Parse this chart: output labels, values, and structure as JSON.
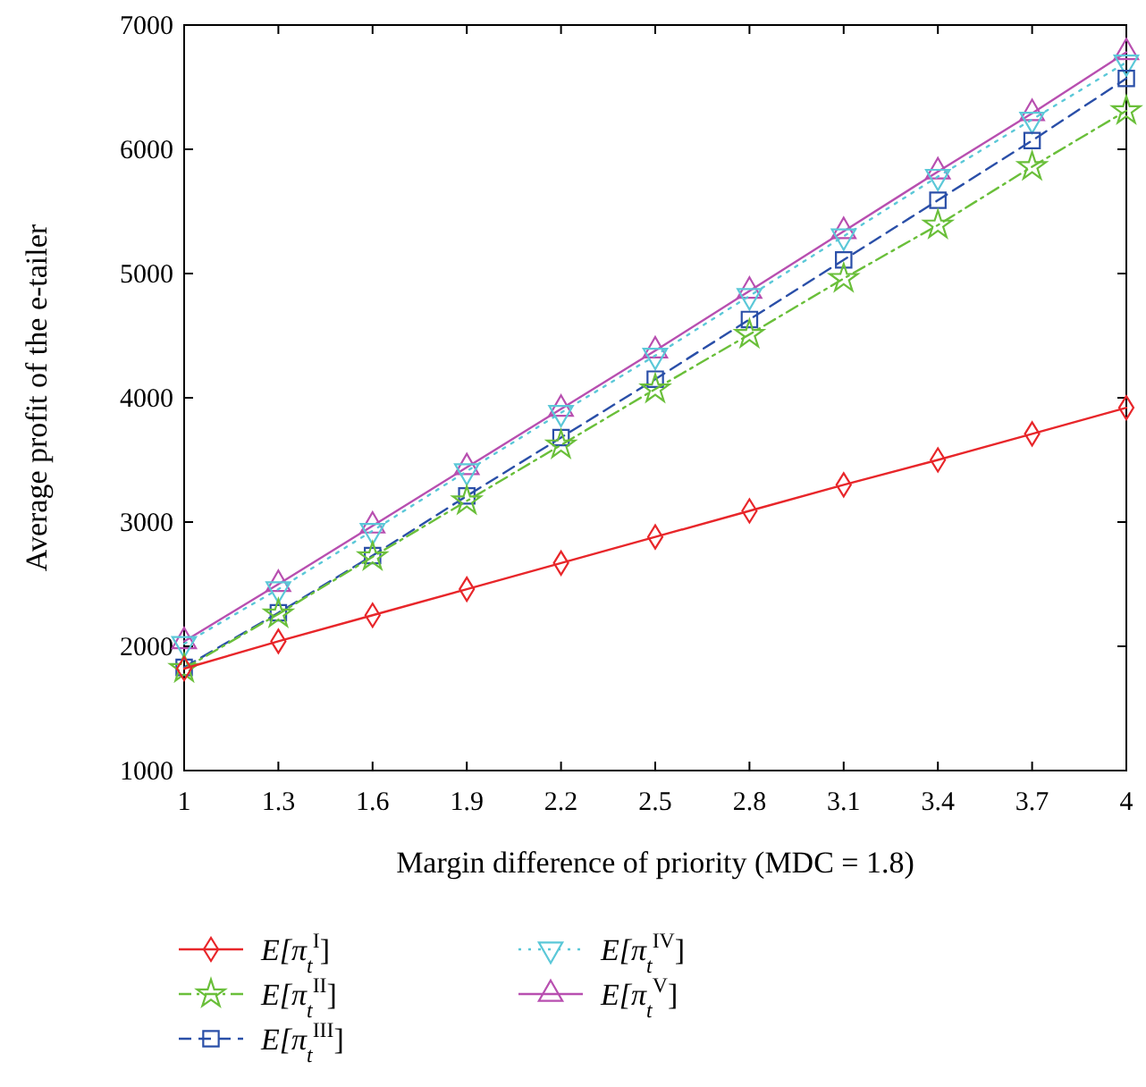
{
  "chart_data": {
    "type": "line",
    "xlabel": "Margin difference of priority (MDC = 1.8)",
    "ylabel": "Average profit of the e-tailer",
    "x": [
      1,
      1.3,
      1.6,
      1.9,
      2.2,
      2.5,
      2.8,
      3.1,
      3.4,
      3.7,
      4
    ],
    "xlim": [
      1,
      4
    ],
    "xticks": [
      1,
      1.3,
      1.6,
      1.9,
      2.2,
      2.5,
      2.8,
      3.1,
      3.4,
      3.7,
      4
    ],
    "ylim": [
      1000,
      7000
    ],
    "yticks": [
      1000,
      2000,
      3000,
      4000,
      5000,
      6000,
      7000
    ],
    "grid": false,
    "legend": "bottom",
    "series": [
      {
        "name": "E[π$_{t}$$^{I}$]",
        "color": "#e8262a",
        "marker": "diamond",
        "line_style": "solid",
        "values": [
          1820,
          2040,
          2250,
          2460,
          2670,
          2880,
          3090,
          3300,
          3500,
          3710,
          3920
        ]
      },
      {
        "name": "E[π$_{t}$$^{II}$]",
        "color": "#6abf3a",
        "marker": "star",
        "line_style": "dashdot",
        "values": [
          1820,
          2260,
          2720,
          3170,
          3620,
          4070,
          4510,
          4960,
          5390,
          5860,
          6310
        ]
      },
      {
        "name": "E[π$_{t}$$^{III}$]",
        "color": "#2a4fa8",
        "marker": "square",
        "line_style": "dashed",
        "values": [
          1830,
          2270,
          2730,
          3210,
          3680,
          4150,
          4630,
          5110,
          5590,
          6070,
          6570
        ]
      },
      {
        "name": "E[π$_{t}$$^{IV}$]",
        "color": "#5bc8d8",
        "marker": "triangle-down",
        "line_style": "dotted",
        "values": [
          2020,
          2460,
          2930,
          3410,
          3880,
          4340,
          4820,
          5300,
          5780,
          6240,
          6700
        ]
      },
      {
        "name": "E[π$_{t}$$^{V}$]",
        "color": "#b84fb0",
        "marker": "triangle",
        "line_style": "solid",
        "values": [
          2040,
          2500,
          2970,
          3440,
          3910,
          4380,
          4860,
          5340,
          5820,
          6290,
          6780
        ]
      }
    ]
  }
}
